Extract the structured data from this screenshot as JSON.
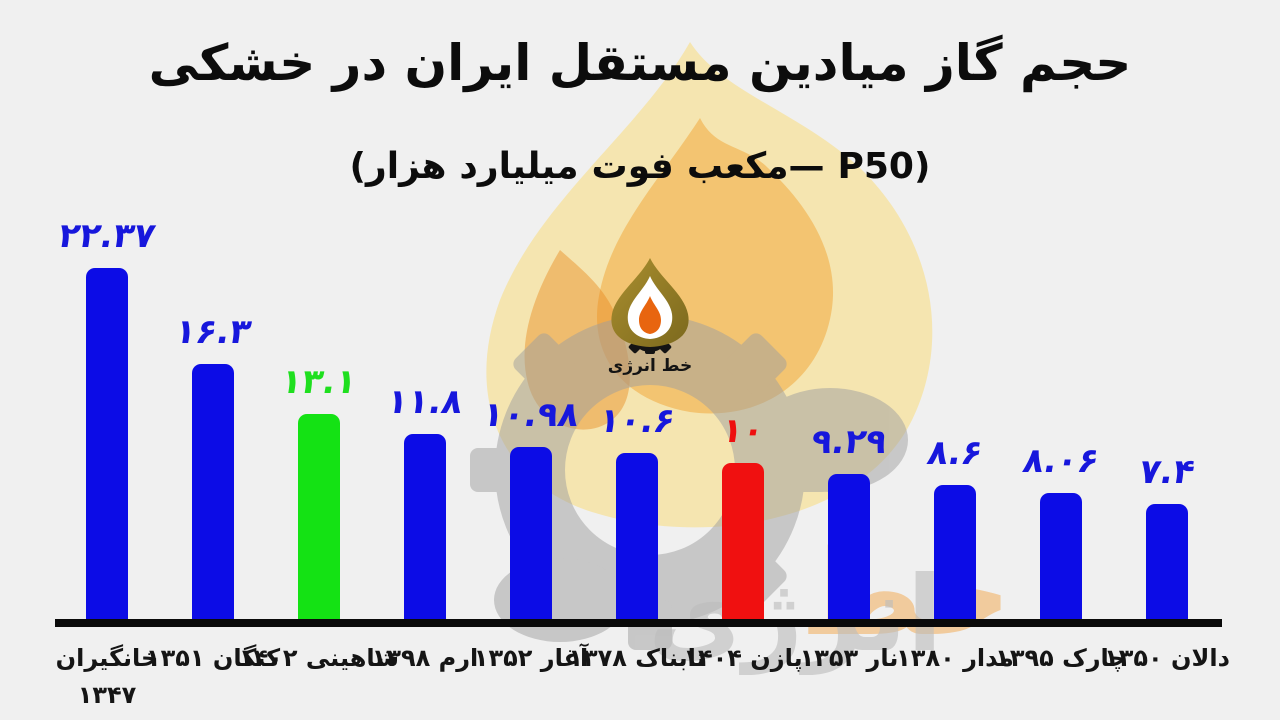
{
  "title": "حجم گاز میادین مستقل ایران در خشکی",
  "subtitle_tokens": [
    "(هزار",
    "میلیارد",
    "فوت",
    "مکعب—",
    "P50)"
  ],
  "logo": {
    "wordmark": "خط انرژی"
  },
  "watermark": {
    "wordmark_right": "خط",
    "wordmark_left": "انرژی"
  },
  "chart_data": {
    "type": "bar",
    "title": "حجم گاز میادین مستقل ایران در خشکی",
    "unit_note": "هزار میلیارد فوت مکعب — P50",
    "ylim": [
      0,
      24
    ],
    "grid": false,
    "categories": [
      "خانگیران ۱۳۴۷",
      "کنگان ۱۳۵۱",
      "شاهینی ۱۴۰۲",
      "ارم ۱۳۹۸",
      "آغار ۱۳۵۲",
      "تابناک ۱۳۷۸",
      "پازن ۱۴۰۴",
      "نار ۱۳۵۳",
      "مدار ۱۳۸۰",
      "چارک ۱۳۹۵",
      "دالان ۱۳۵۰"
    ],
    "values": [
      22.37,
      16.3,
      13.1,
      11.8,
      10.98,
      10.6,
      10,
      9.29,
      8.6,
      8.06,
      7.4
    ],
    "bars": [
      {
        "name": "خانگیران",
        "year": "۱۳۴۷",
        "value": 22.37,
        "display": "۲۲.۳۷",
        "color": "blue",
        "two_line": true
      },
      {
        "name": "کنگان",
        "year": "۱۳۵۱",
        "value": 16.3,
        "display": "۱۶.۳",
        "color": "blue",
        "two_line": false
      },
      {
        "name": "شاهینی",
        "year": "۱۴۰۲",
        "value": 13.1,
        "display": "۱۳.۱",
        "color": "green",
        "two_line": false
      },
      {
        "name": "ارم",
        "year": "۱۳۹۸",
        "value": 11.8,
        "display": "۱۱.۸",
        "color": "blue",
        "two_line": false
      },
      {
        "name": "آغار",
        "year": "۱۳۵۲",
        "value": 10.98,
        "display": "۱۰.۹۸",
        "color": "blue",
        "two_line": false
      },
      {
        "name": "تابناک",
        "year": "۱۳۷۸",
        "value": 10.6,
        "display": "۱۰.۶",
        "color": "blue",
        "two_line": false
      },
      {
        "name": "پازن",
        "year": "۱۴۰۴",
        "value": 10,
        "display": "۱۰",
        "color": "red",
        "two_line": false
      },
      {
        "name": "نار",
        "year": "۱۳۵۳",
        "value": 9.29,
        "display": "۹.۲۹",
        "color": "blue",
        "two_line": false
      },
      {
        "name": "مدار",
        "year": "۱۳۸۰",
        "value": 8.6,
        "display": "۸.۶",
        "color": "blue",
        "two_line": false
      },
      {
        "name": "چارک",
        "year": "۱۳۹۵",
        "value": 8.06,
        "display": "۸.۰۶",
        "color": "blue",
        "two_line": false
      },
      {
        "name": "دالان",
        "year": "۱۳۵۰",
        "value": 7.4,
        "display": "۷.۴",
        "color": "blue",
        "two_line": false
      }
    ],
    "bar_colors": {
      "blue": "#0c0ce6",
      "green": "#14e214",
      "red": "#f01010"
    },
    "label_colors": {
      "blue": "#1717dc",
      "green": "#1fdf1f",
      "red": "#ee0f0f"
    }
  }
}
